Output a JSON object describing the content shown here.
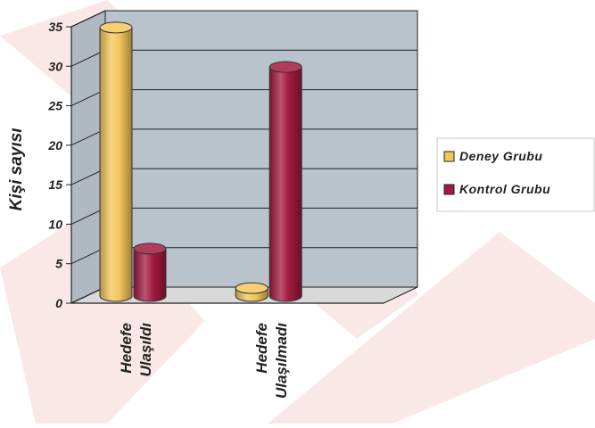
{
  "chart_data": {
    "type": "bar",
    "style": "3d-cylinder",
    "categories": [
      [
        "Hedefe",
        "Ulaşıldı"
      ],
      [
        "Hedefe",
        "Ulaşılmadı"
      ]
    ],
    "series": [
      {
        "name": "Deney Grubu",
        "values": [
          34,
          1
        ],
        "color": "#f2c75a"
      },
      {
        "name": "Kontrol Grubu",
        "values": [
          6,
          29
        ],
        "color": "#a3193f"
      }
    ],
    "ylabel": "Kişi sayısı",
    "xlabel": "",
    "ylim": [
      0,
      35
    ],
    "yticks": [
      0,
      5,
      10,
      15,
      20,
      25,
      30,
      35
    ],
    "grid": true,
    "legend": "right"
  },
  "colors": {
    "wall": "#b9c3cb",
    "floor": "#d9d9d9",
    "grid": "#202020",
    "watermark": "#f6d6d6"
  }
}
